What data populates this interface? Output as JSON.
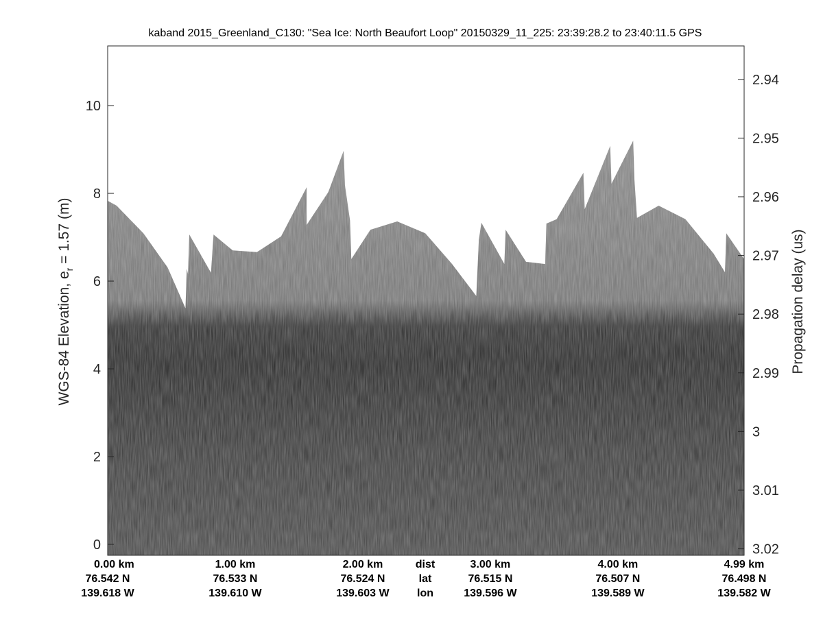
{
  "chart_data": {
    "type": "echogram",
    "title": "kaband 2015_Greenland_C130: \"Sea Ice: North Beaufort Loop\"  20150329_11_225: 23:39:28.2 to 23:40:11.5 GPS",
    "ylabel": {
      "text": "WGS-84 Elevation, e",
      "subscript": "r",
      "rest": " = 1.57 (m)"
    },
    "y2label": "Propagation delay (us)",
    "xlim": [
      0,
      4.99
    ],
    "ylim": [
      -0.25,
      11.36
    ],
    "yticks": [
      0,
      2,
      4,
      6,
      8,
      10
    ],
    "y2lim": [
      3.0211,
      2.9343
    ],
    "y2ticks": [
      2.94,
      2.95,
      2.96,
      2.97,
      2.98,
      2.99,
      3,
      3.01,
      3.02
    ],
    "xticks": [
      {
        "value": 0,
        "label": "0.00 km"
      },
      {
        "value": 1,
        "label": "1.00 km"
      },
      {
        "value": 2,
        "label": "2.00 km"
      },
      {
        "value": 3,
        "label": "3.00 km"
      },
      {
        "value": 4,
        "label": "4.00 km"
      },
      {
        "value": 4.99,
        "label": "4.99 km"
      }
    ],
    "lat_labels": [
      "76.542 N",
      "76.533 N",
      "76.524 N",
      "76.515 N",
      "76.507 N",
      "76.498 N"
    ],
    "lon_labels": [
      "139.618 W",
      "139.610 W",
      "139.603 W",
      "139.596 W",
      "139.589 W",
      "139.582 W"
    ],
    "row_labels": [
      "dist",
      "lat",
      "lon"
    ],
    "surface": {
      "x": [
        0,
        0.07,
        0.28,
        0.47,
        0.61,
        0.62,
        0.63,
        0.64,
        0.81,
        0.83,
        0.98,
        1.17,
        1.36,
        1.56,
        1.56,
        1.73,
        1.85,
        1.86,
        1.9,
        1.91,
        2.06,
        2.27,
        2.49,
        2.7,
        2.89,
        2.91,
        2.93,
        3.11,
        3.12,
        3.28,
        3.43,
        3.44,
        3.52,
        3.73,
        3.74,
        3.94,
        3.95,
        4.12,
        4.13,
        4.15,
        4.32,
        4.53,
        4.75,
        4.84,
        4.85,
        4.99
      ],
      "values": [
        7.83,
        7.72,
        7.09,
        6.31,
        5.38,
        6.28,
        6.16,
        7.06,
        6.19,
        7.06,
        6.7,
        6.66,
        7.02,
        8.14,
        7.28,
        8.03,
        8.97,
        8.19,
        7.38,
        6.5,
        7.17,
        7.36,
        7.09,
        6.39,
        5.66,
        6.94,
        7.33,
        6.39,
        7.17,
        6.44,
        6.39,
        7.31,
        7.41,
        8.47,
        7.64,
        9.08,
        8.22,
        9.2,
        8.31,
        7.44,
        7.72,
        7.41,
        6.63,
        6.2,
        7.09,
        6.5
      ]
    }
  }
}
